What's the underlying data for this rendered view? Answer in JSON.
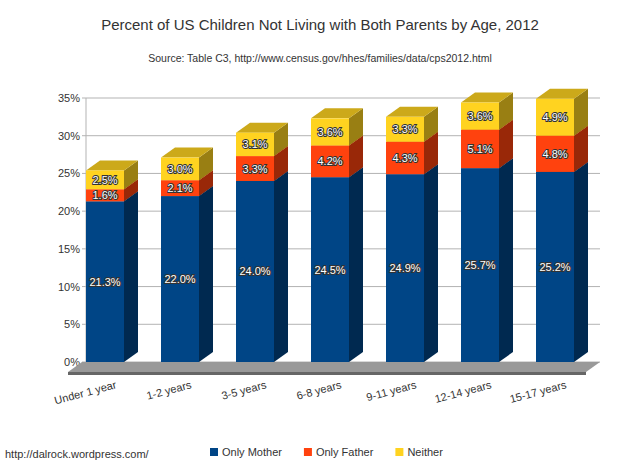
{
  "chart_data": {
    "type": "bar",
    "title": "Percent of US Children Not Living with Both Parents by Age, 2012",
    "subtitle": "Source: Table C3, http://www.census.gov/hhes/families/data/cps2012.html",
    "annotations": [
      "http://dalrock.wordpress.com/"
    ],
    "categories": [
      "Under 1 year",
      "1-2 years",
      "3-5 years",
      "6-8 years",
      "9-11 years",
      "12-14 years",
      "15-17 years"
    ],
    "series": [
      {
        "name": "Only Mother",
        "color": "#004586",
        "values": [
          21.3,
          22.0,
          24.0,
          24.5,
          24.9,
          25.7,
          25.2
        ],
        "value_labels": [
          "21.3%",
          "22.0%",
          "24.0%",
          "24.5%",
          "24.9%",
          "25.7%",
          "25.2%"
        ]
      },
      {
        "name": "Only Father",
        "color": "#ff420e",
        "values": [
          1.6,
          2.1,
          3.3,
          4.2,
          4.3,
          5.1,
          4.8
        ],
        "value_labels": [
          "1.6%",
          "2.1%",
          "3.3%",
          "4.2%",
          "4.3%",
          "5.1%",
          "4.8%"
        ]
      },
      {
        "name": "Neither",
        "color": "#ffd320",
        "values": [
          2.5,
          3.0,
          3.1,
          3.6,
          3.3,
          3.6,
          4.9
        ],
        "value_labels": [
          "2.5%",
          "3.0%",
          "3.1%",
          "3.6%",
          "3.3%",
          "3.6%",
          "4.9%"
        ]
      }
    ],
    "ylim": [
      0,
      35
    ],
    "yticks": [
      {
        "value": 0,
        "label": "0%"
      },
      {
        "value": 5,
        "label": "5%"
      },
      {
        "value": 10,
        "label": "10%"
      },
      {
        "value": 15,
        "label": "15%"
      },
      {
        "value": 20,
        "label": "20%"
      },
      {
        "value": 25,
        "label": "25%"
      },
      {
        "value": 30,
        "label": "30%"
      },
      {
        "value": 35,
        "label": "35%"
      }
    ],
    "stacked": true,
    "data_labels": true,
    "grid": true,
    "legend": "bottom"
  }
}
